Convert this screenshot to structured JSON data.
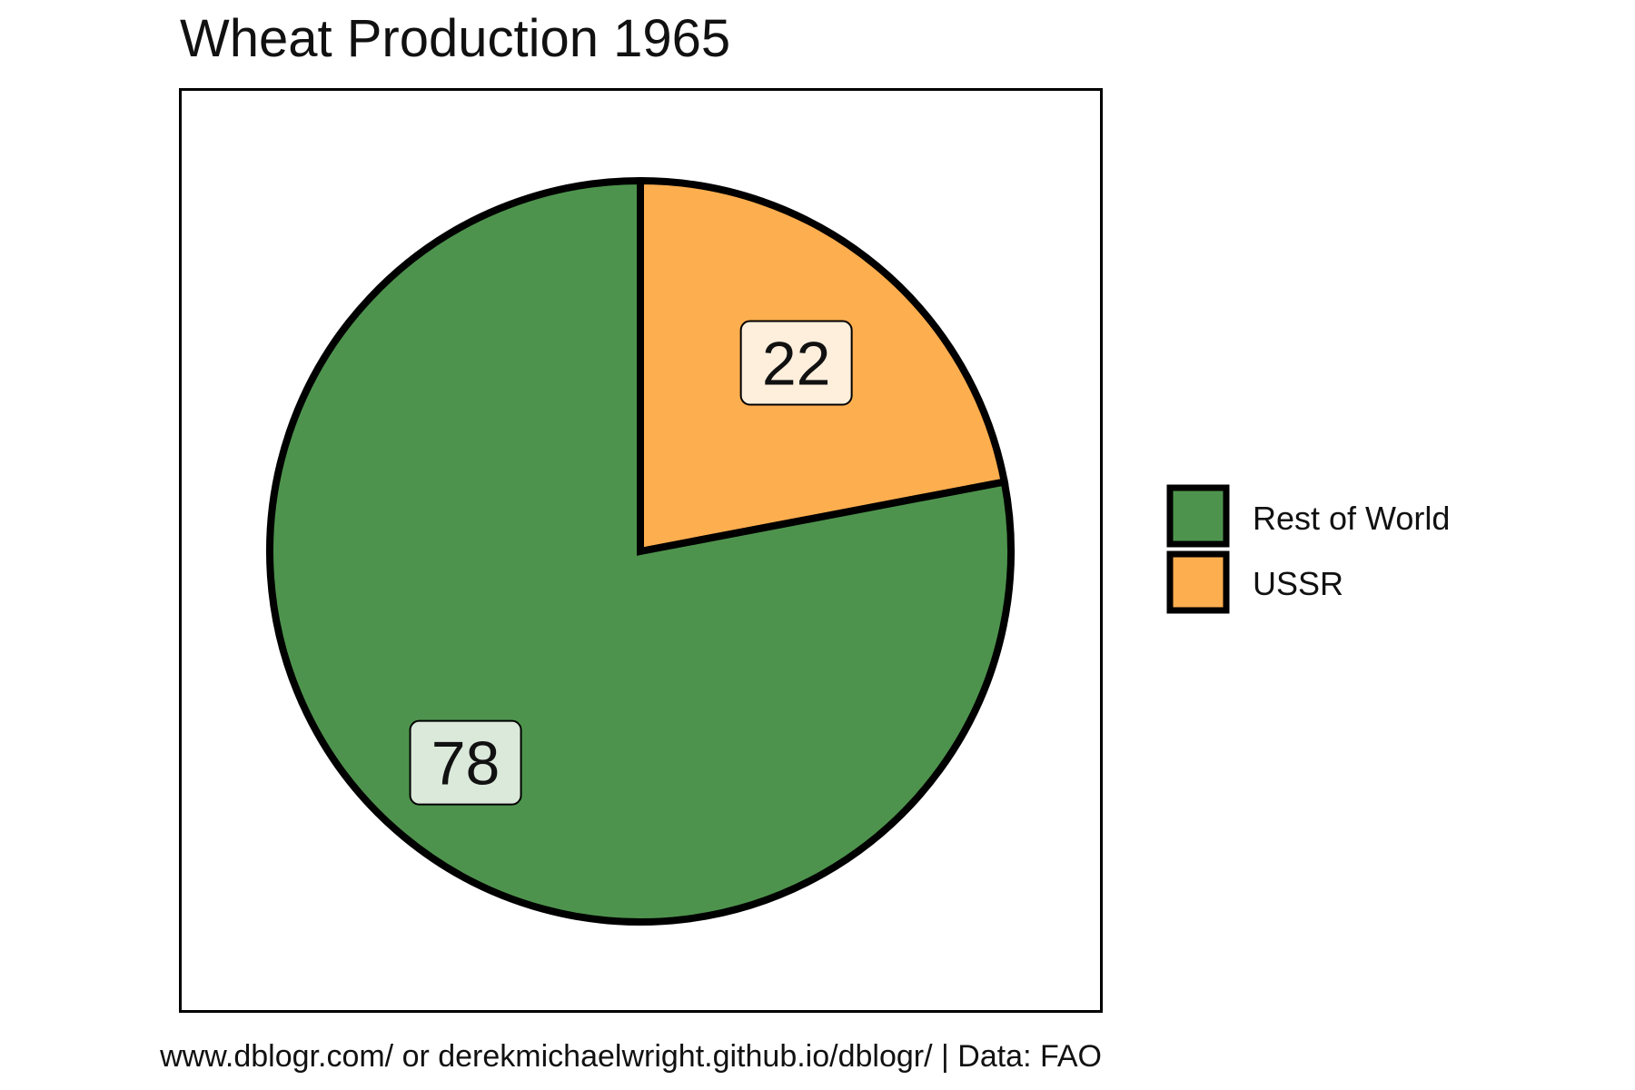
{
  "chart_data": {
    "type": "pie",
    "title": "Wheat Production 1965",
    "categories": [
      "Rest of World",
      "USSR"
    ],
    "values": [
      78,
      22
    ],
    "colors": {
      "Rest of World": "#4e934d",
      "USSR": "#fdae4f"
    },
    "label_fill_colors": {
      "Rest of World": "#dbe9db",
      "USSR": "#feefdc"
    },
    "legend": {
      "entries": [
        "Rest of World",
        "USSR"
      ],
      "placement": "right"
    },
    "caption": "www.dblogr.com/ or derekmichaelwright.github.io/dblogr/ | Data: FAO"
  }
}
